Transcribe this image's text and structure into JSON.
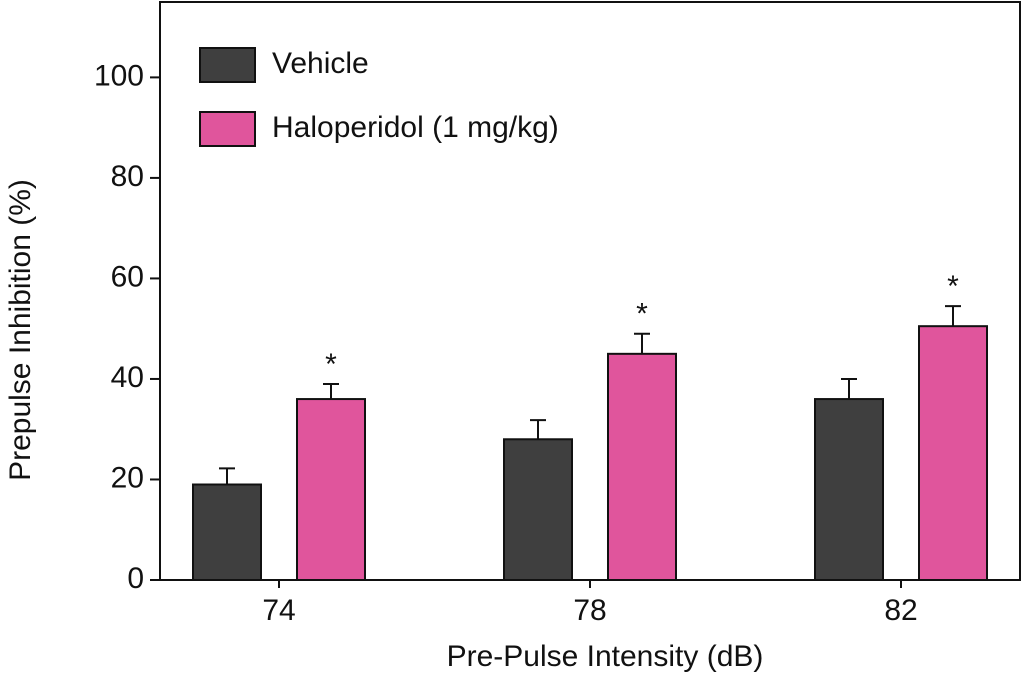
{
  "chart_data": {
    "type": "bar",
    "x_label": "Pre-Pulse  Intensity  (dB)",
    "y_label": "Prepulse  Inhibition  (%)",
    "categories": [
      "74",
      "78",
      "82"
    ],
    "series": [
      {
        "name": "Vehicle",
        "color": "#3f3f3f",
        "values": [
          19,
          28,
          36
        ],
        "errors": [
          3.2,
          3.8,
          4
        ]
      },
      {
        "name": "Haloperidol (1 mg/kg)",
        "color": "#e0559c",
        "values": [
          36,
          45,
          50.5
        ],
        "errors": [
          3,
          4,
          4
        ]
      }
    ],
    "annotations": [
      "*",
      "*",
      "*"
    ],
    "ylim": [
      0,
      115
    ],
    "yticks": [
      0,
      20,
      40,
      60,
      80,
      100
    ],
    "grid": false,
    "legend": "upper left"
  }
}
